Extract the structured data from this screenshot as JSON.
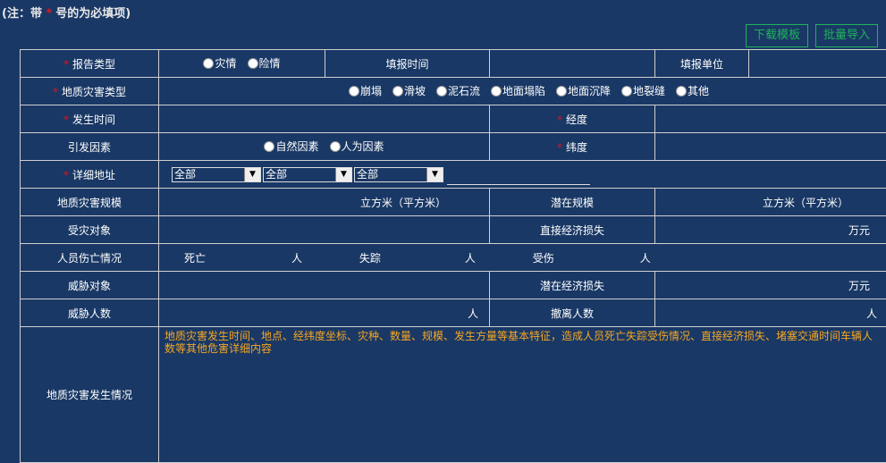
{
  "note": {
    "prefix": "(注：带",
    "star": "*",
    "suffix": "号的为必填项)"
  },
  "buttons": {
    "download": "下载模板",
    "import": "批量导入"
  },
  "star": "*",
  "rows": {
    "report_type": {
      "label": "报告类型",
      "options": [
        "灾情",
        "险情"
      ],
      "fill_time": "填报时间",
      "fill_unit": "填报单位"
    },
    "hazard_type": {
      "label": "地质灾害类型",
      "options": [
        "崩塌",
        "滑坡",
        "泥石流",
        "地面塌陷",
        "地面沉降",
        "地裂缝",
        "其他"
      ]
    },
    "occur_time": {
      "label": "发生时间",
      "longitude": "经度"
    },
    "cause": {
      "label": "引发因素",
      "options": [
        "自然因素",
        "人为因素"
      ],
      "latitude": "纬度"
    },
    "address": {
      "label": "详细地址",
      "selects": [
        "全部",
        "全部",
        "全部"
      ]
    },
    "scale": {
      "label": "地质灾害规模",
      "unit": "立方米（平方米）",
      "potential": "潜在规模",
      "potential_unit": "立方米（平方米）"
    },
    "victims": {
      "label": "受灾对象",
      "loss": "直接经济损失",
      "loss_unit": "万元"
    },
    "casualty": {
      "label": "人员伤亡情况",
      "dead": "死亡",
      "missing": "失踪",
      "injured": "受伤",
      "unit": "人"
    },
    "threat": {
      "label": "威胁对象",
      "potential_loss": "潜在经济损失",
      "unit": "万元"
    },
    "threat_people": {
      "label": "威胁人数",
      "unit": "人",
      "evacuated": "撤离人数",
      "evacuated_unit": "人"
    },
    "situation": {
      "label": "地质灾害发生情况",
      "placeholder": "地质灾害发生时间、地点、经纬度坐标、灾种、数量、规模、发生方量等基本特征，造成人员死亡失踪受伤情况、直接经济损失、堵塞交通时间车辆人数等其他危害详细内容"
    }
  }
}
